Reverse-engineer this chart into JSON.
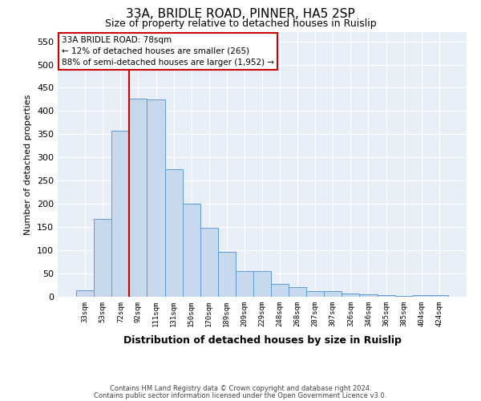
{
  "title": "33A, BRIDLE ROAD, PINNER, HA5 2SP",
  "subtitle": "Size of property relative to detached houses in Ruislip",
  "xlabel": "Distribution of detached houses by size in Ruislip",
  "ylabel": "Number of detached properties",
  "categories": [
    "33sqm",
    "53sqm",
    "72sqm",
    "92sqm",
    "111sqm",
    "131sqm",
    "150sqm",
    "170sqm",
    "189sqm",
    "209sqm",
    "229sqm",
    "248sqm",
    "268sqm",
    "287sqm",
    "307sqm",
    "326sqm",
    "346sqm",
    "365sqm",
    "385sqm",
    "404sqm",
    "424sqm"
  ],
  "values": [
    13,
    168,
    357,
    427,
    425,
    275,
    200,
    148,
    96,
    55,
    55,
    27,
    20,
    12,
    12,
    7,
    5,
    3,
    1,
    4,
    4
  ],
  "bar_color": "#c8d9ed",
  "bar_edge_color": "#5b9bd5",
  "vline_position": 2.5,
  "vline_color": "#cc0000",
  "annotation_line1": "33A BRIDLE ROAD: 78sqm",
  "annotation_line2": "← 12% of detached houses are smaller (265)",
  "annotation_line3": "88% of semi-detached houses are larger (1,952) →",
  "annotation_box_color": "#ffffff",
  "annotation_box_edge_color": "#cc0000",
  "ylim": [
    0,
    570
  ],
  "yticks": [
    0,
    50,
    100,
    150,
    200,
    250,
    300,
    350,
    400,
    450,
    500,
    550
  ],
  "bg_color": "#e8eef8",
  "footer1": "Contains HM Land Registry data © Crown copyright and database right 2024.",
  "footer2": "Contains public sector information licensed under the Open Government Licence v3.0."
}
